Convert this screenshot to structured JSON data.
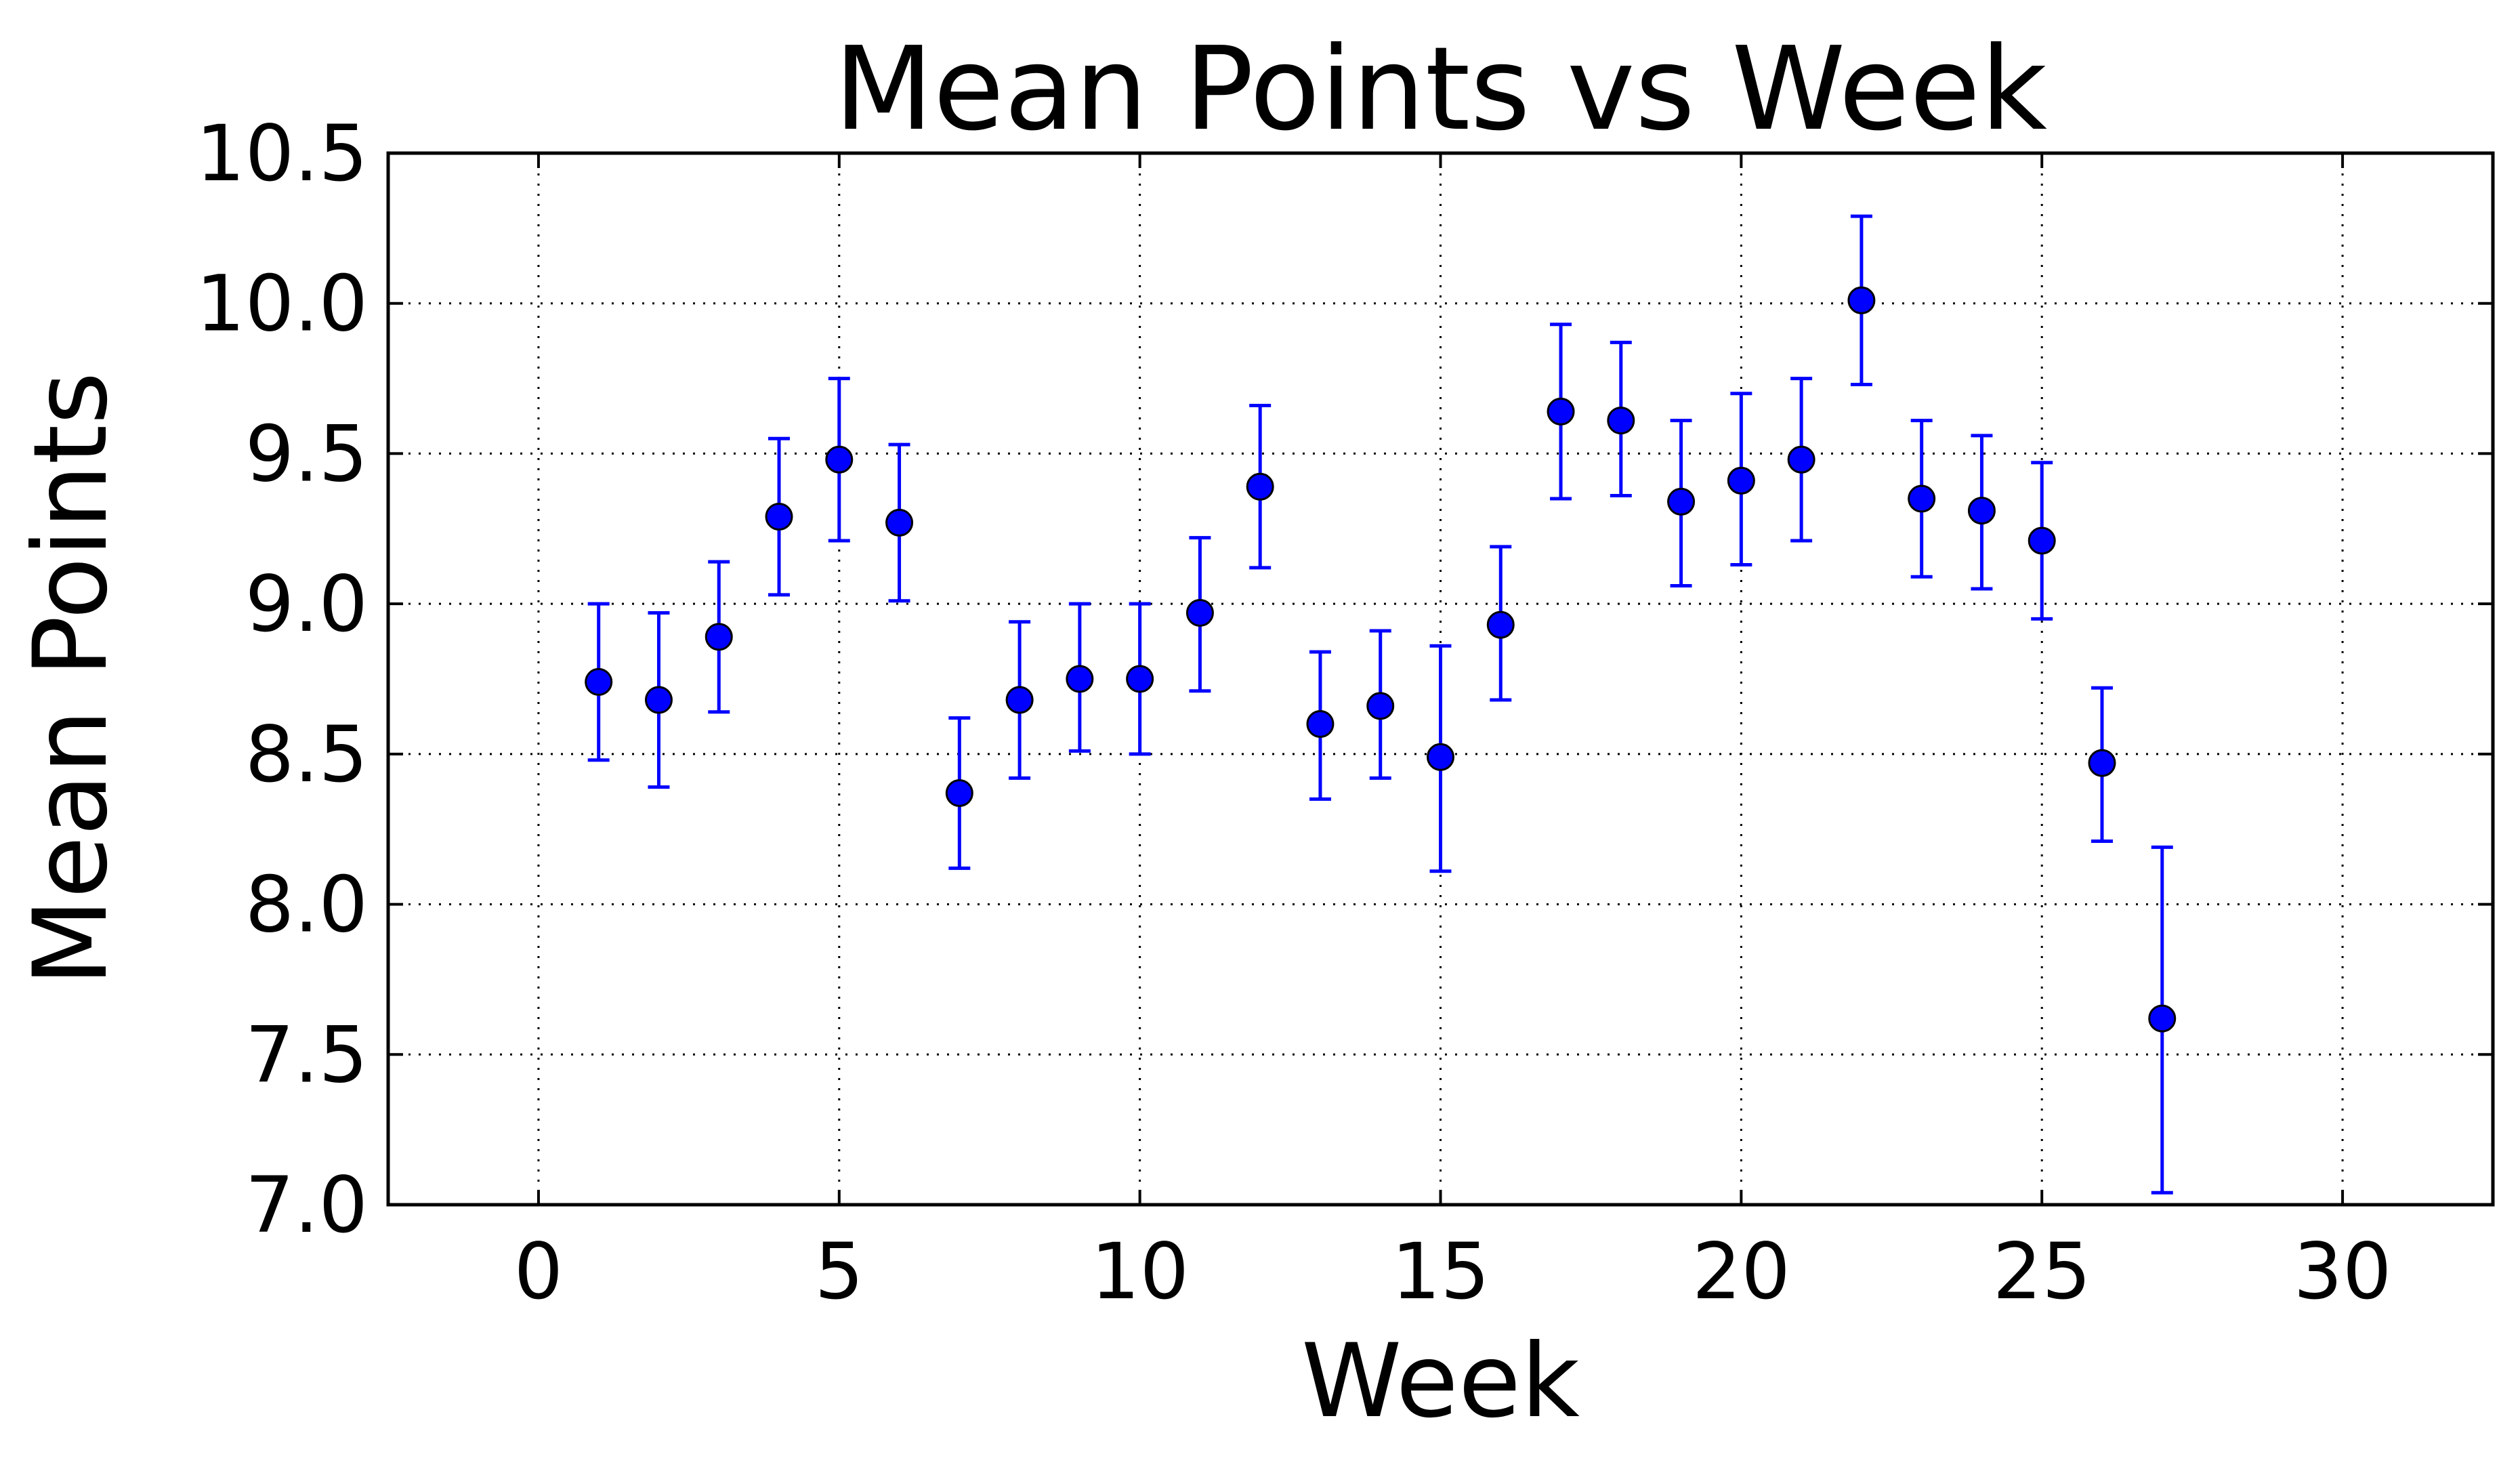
{
  "chart_data": {
    "type": "scatter",
    "title": "Mean Points vs Week",
    "xlabel": "Week",
    "ylabel": "Mean Points",
    "xlim": [
      -2.5,
      32.5
    ],
    "ylim": [
      7.0,
      10.5
    ],
    "xticks": [
      0,
      5,
      10,
      15,
      20,
      25,
      30
    ],
    "xtick_labels": [
      "0",
      "5",
      "10",
      "15",
      "20",
      "25",
      "30"
    ],
    "yticks": [
      7.0,
      7.5,
      8.0,
      8.5,
      9.0,
      9.5,
      10.0,
      10.5
    ],
    "ytick_labels": [
      "7.0",
      "7.5",
      "8.0",
      "8.5",
      "9.0",
      "9.5",
      "10.0",
      "10.5"
    ],
    "grid": true,
    "colors": {
      "marker": "#0000ff",
      "errorbar": "#0000ff",
      "marker_edge": "#000000"
    },
    "series": [
      {
        "x": [
          1,
          2,
          3,
          4,
          5,
          6,
          7,
          8,
          9,
          10,
          11,
          12,
          13,
          14,
          15,
          16,
          17,
          18,
          19,
          20,
          21,
          22,
          23,
          24,
          25,
          26,
          27
        ],
        "y": [
          8.74,
          8.68,
          8.89,
          9.29,
          9.48,
          9.27,
          8.37,
          8.68,
          8.75,
          8.75,
          8.97,
          9.39,
          8.6,
          8.66,
          8.49,
          8.93,
          9.64,
          9.61,
          9.34,
          9.41,
          9.48,
          10.01,
          9.35,
          9.31,
          9.21,
          8.47,
          7.62
        ],
        "yerr_low": [
          8.48,
          8.39,
          8.64,
          9.03,
          9.21,
          9.01,
          8.12,
          8.42,
          8.51,
          8.5,
          8.71,
          9.12,
          8.35,
          8.42,
          8.11,
          8.68,
          9.35,
          9.36,
          9.06,
          9.13,
          9.21,
          9.73,
          9.09,
          9.05,
          8.95,
          8.21,
          7.04
        ],
        "yerr_high": [
          9.0,
          8.97,
          9.14,
          9.55,
          9.75,
          9.53,
          8.62,
          8.94,
          9.0,
          9.0,
          9.22,
          9.66,
          8.84,
          8.91,
          8.86,
          9.19,
          9.93,
          9.87,
          9.61,
          9.7,
          9.75,
          10.29,
          9.61,
          9.56,
          9.47,
          8.72,
          8.19
        ]
      }
    ]
  }
}
